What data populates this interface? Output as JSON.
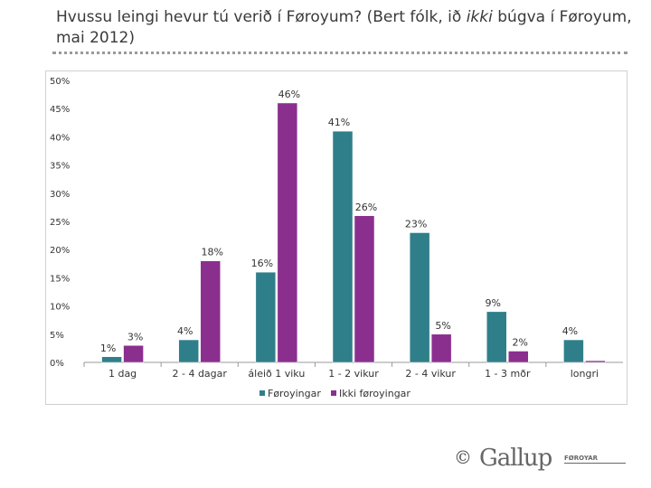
{
  "header": {
    "title_part1": "Hvussu leingi hevur tú verið í Føroyum? (Bert fólk, ið ",
    "title_italic": "ikki",
    "title_part2": " búgva í Føroyum, mai 2012)"
  },
  "logo": {
    "symbol": "©",
    "wordmark": "Gallup",
    "subtext": "FØROYAR"
  },
  "chart_data": {
    "type": "bar",
    "title": "Hvussu leingi hevur tú verið í Føroyum? (Bert fólk, ið ikki búgva í Føroyum, mai 2012)",
    "categories": [
      "1 dag",
      "2 - 4 dagar",
      "áleið 1 viku",
      "1 - 2 vikur",
      "2 - 4 vikur",
      "1 - 3 mðr",
      "longri"
    ],
    "series": [
      {
        "name": "Føroyingar",
        "color": "#2f7f8a",
        "values": [
          1,
          4,
          16,
          41,
          23,
          9,
          4
        ],
        "labels": [
          "1%",
          "4%",
          "16%",
          "41%",
          "23%",
          "9%",
          "4%"
        ]
      },
      {
        "name": "Ikki føroyingar",
        "color": "#8b2f8f",
        "values": [
          3,
          18,
          46,
          26,
          5,
          2,
          0.3
        ],
        "labels": [
          "3%",
          "18%",
          "46%",
          "26%",
          "5%",
          "2%",
          ""
        ]
      }
    ],
    "yticks": [
      "0%",
      "5%",
      "10%",
      "15%",
      "20%",
      "25%",
      "30%",
      "35%",
      "40%",
      "45%",
      "50%"
    ],
    "ylim": [
      0,
      50
    ],
    "xlabel": "",
    "ylabel": "",
    "grid": false,
    "legend_position": "bottom"
  }
}
